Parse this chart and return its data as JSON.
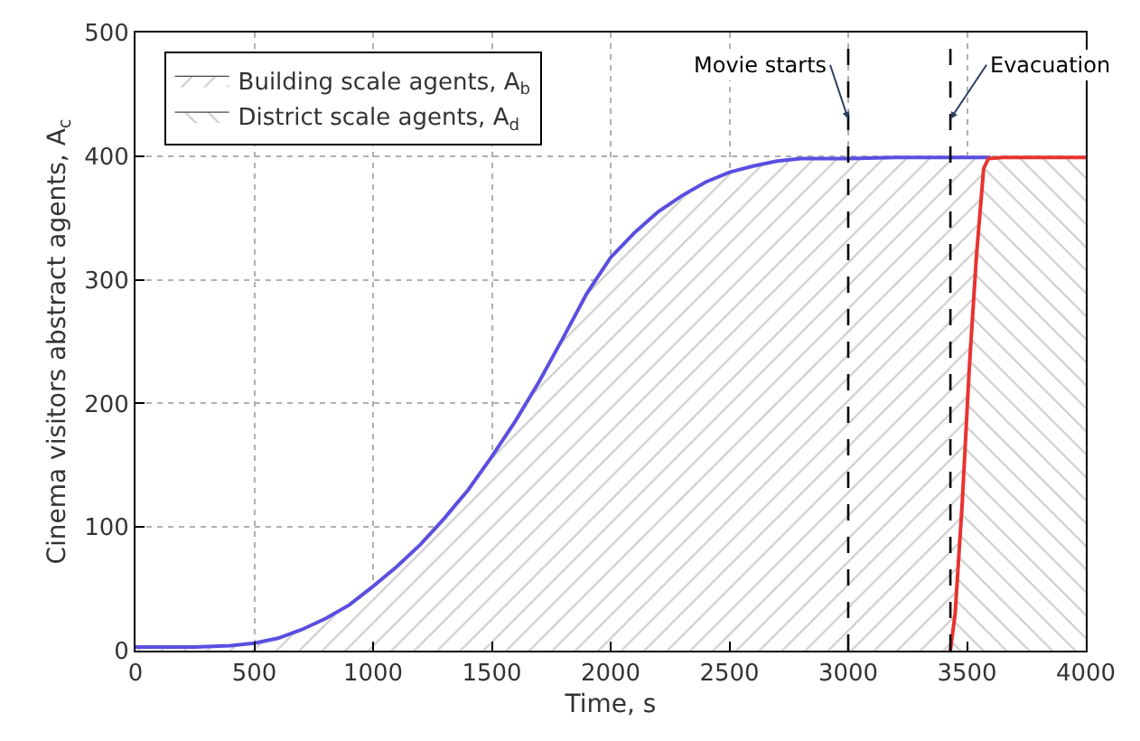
{
  "chart_data": {
    "type": "area",
    "xlabel": "Time, s",
    "ylabel": "Cinema visitors abstract agents, A$_{c}$",
    "series": [
      {
        "name": "Building scale agents, A$_{b}$",
        "color": "#5a4fe0",
        "x": [
          0,
          250,
          400,
          500,
          600,
          700,
          800,
          900,
          1000,
          1100,
          1200,
          1300,
          1400,
          1500,
          1600,
          1700,
          1800,
          1900,
          2000,
          2100,
          2200,
          2300,
          2400,
          2500,
          2600,
          2700,
          2800,
          3000,
          3200,
          3400,
          3600
        ],
        "values": [
          3,
          3,
          4,
          6,
          10,
          17,
          26,
          37,
          52,
          68,
          86,
          107,
          130,
          157,
          186,
          218,
          253,
          289,
          318,
          338,
          355,
          368,
          379,
          387,
          392,
          396,
          398,
          398,
          399,
          399,
          399
        ]
      },
      {
        "name": "District scale agents, A$_{d}$",
        "color": "#e8332f",
        "x": [
          3430,
          3450,
          3480,
          3510,
          3540,
          3570,
          3590,
          3650,
          4000
        ],
        "values": [
          0,
          30,
          120,
          230,
          320,
          390,
          398,
          399,
          399
        ]
      }
    ],
    "xlim": [
      0,
      4000
    ],
    "xticks": [
      0,
      500,
      1000,
      1500,
      2000,
      2500,
      3000,
      3500,
      4000
    ],
    "ylim": [
      0,
      500
    ],
    "yticks": [
      0,
      100,
      200,
      300,
      400,
      500
    ],
    "ref_lines": [
      {
        "axis": "x",
        "value": 3000,
        "label": "Movie starts",
        "color": "#000000",
        "line_style": "dashed"
      },
      {
        "axis": "x",
        "value": 3430,
        "label": "Evacuation",
        "color": "#000000",
        "line_style": "dashed"
      }
    ],
    "grid": true,
    "legend": "top left",
    "line_style": "solid",
    "marker": "none"
  }
}
